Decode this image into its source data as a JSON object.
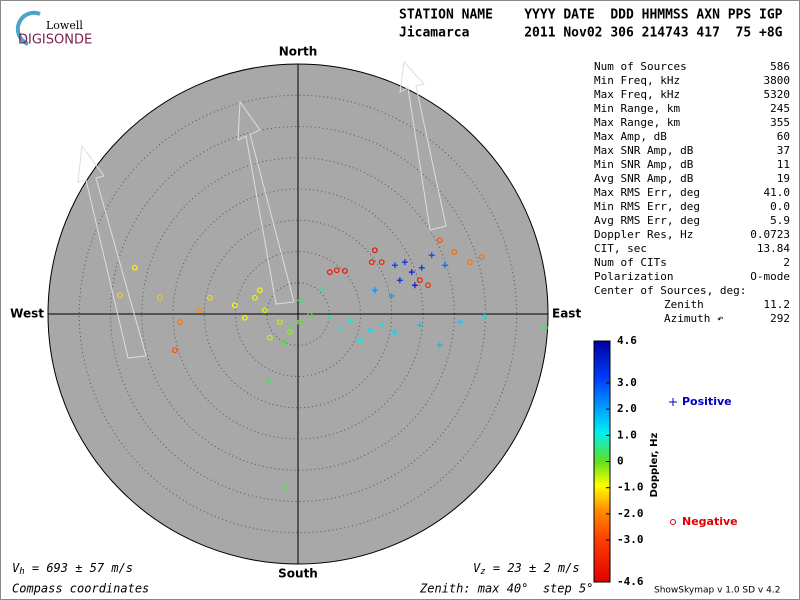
{
  "chart_data": {
    "type": "skymap",
    "logo": {
      "line1": "Lowell",
      "line2": "DIGISONDE"
    },
    "header": {
      "line1": "STATION NAME    YYYY DATE  DDD HHMMSS AXN PPS IGP",
      "line2": "Jicamarca       2011 Nov02 306 214743 417  75 +8G"
    },
    "directions": {
      "north": "North",
      "south": "South",
      "east": "East",
      "west": "West"
    },
    "zenith_max": 40,
    "zenith_step": 5,
    "stats": [
      [
        "Num of Sources",
        586
      ],
      [
        "Min Freq, kHz",
        3800
      ],
      [
        "Max Freq, kHz",
        5320
      ],
      [
        "Min Range, km",
        245
      ],
      [
        "Max Range, km",
        355
      ],
      [
        "Max Amp, dB",
        60
      ],
      [
        "Max SNR Amp, dB",
        37
      ],
      [
        "Min SNR Amp, dB",
        11
      ],
      [
        "Avg SNR Amp, dB",
        19
      ],
      [
        "Max RMS Err, deg",
        "41.0"
      ],
      [
        "Min RMS Err, deg",
        "0.0"
      ],
      [
        "Avg RMS Err, deg",
        5.9
      ],
      [
        "Doppler Res, Hz",
        0.0723
      ],
      [
        "CIT, sec",
        13.84
      ],
      [
        "Num of CITs",
        2
      ],
      [
        "Polarization",
        "O-mode"
      ]
    ],
    "center_label": "Center of Sources, deg:",
    "center": [
      [
        "Zenith",
        11.2
      ],
      [
        "Azimuth ↶",
        292
      ]
    ],
    "colorbar": {
      "label": "Doppler, Hz",
      "lim": [
        -4.6,
        4.6
      ],
      "ticks": [
        4.6,
        {
          "value": 3,
          "label": "3.0"
        },
        {
          "value": 2,
          "label": "2.0"
        },
        {
          "value": 1,
          "label": "1.0"
        },
        0,
        {
          "value": -1,
          "label": "-1.0"
        },
        {
          "value": -2,
          "label": "-2.0"
        },
        {
          "value": -3,
          "label": "-3.0"
        },
        -4.6
      ]
    },
    "legend": {
      "positive": "Positive",
      "negative": "Negative"
    },
    "points": {
      "negative": [
        [
          5.1,
          6.7,
          -4.2
        ],
        [
          6.2,
          7.0,
          -4.0
        ],
        [
          7.5,
          6.9,
          -4.1
        ],
        [
          12.3,
          10.2,
          -4.3
        ],
        [
          11.8,
          8.3,
          -4.0
        ],
        [
          13.4,
          8.3,
          -3.8
        ],
        [
          19.5,
          5.4,
          -3.9
        ],
        [
          20.8,
          4.6,
          -3.6
        ],
        [
          22.7,
          11.8,
          -2.7
        ],
        [
          25.0,
          9.9,
          -2.4
        ],
        [
          27.5,
          8.3,
          -2.2
        ],
        [
          29.4,
          9.1,
          -2.3
        ],
        [
          -28.5,
          3.0,
          -1.3
        ],
        [
          -26.1,
          7.4,
          -1.0
        ],
        [
          -22.1,
          2.6,
          -1.4
        ],
        [
          -18.9,
          -1.3,
          -2.2
        ],
        [
          -19.7,
          -5.8,
          -2.8
        ],
        [
          -14.1,
          2.6,
          -1.2
        ],
        [
          -10.1,
          1.4,
          -0.9
        ],
        [
          -6.9,
          2.6,
          -0.8
        ],
        [
          -5.3,
          0.6,
          -0.7
        ],
        [
          -8.5,
          -0.6,
          -1.0
        ],
        [
          -2.9,
          -1.3,
          -0.5
        ],
        [
          -1.3,
          -2.9,
          -0.3
        ],
        [
          -4.5,
          -3.8,
          -0.6
        ],
        [
          0.3,
          -1.3,
          0.0
        ],
        [
          1.9,
          -0.2,
          0.1
        ],
        [
          -15.7,
          0.6,
          -1.9
        ],
        [
          -6.1,
          3.8,
          -0.9
        ],
        [
          39.5,
          -2.2,
          0.4
        ]
      ],
      "positive": [
        [
          15.5,
          7.8,
          3.2
        ],
        [
          17.1,
          8.3,
          3.5
        ],
        [
          18.2,
          6.7,
          3.8
        ],
        [
          19.8,
          7.4,
          3.4
        ],
        [
          21.4,
          9.4,
          3.0
        ],
        [
          16.3,
          5.4,
          3.6
        ],
        [
          18.7,
          4.6,
          4.0
        ],
        [
          23.5,
          7.8,
          2.6
        ],
        [
          12.3,
          3.8,
          2.2
        ],
        [
          15.0,
          2.9,
          2.0
        ],
        [
          8.3,
          -1.0,
          1.0
        ],
        [
          11.5,
          -2.6,
          1.3
        ],
        [
          13.4,
          -1.8,
          1.2
        ],
        [
          15.5,
          -2.9,
          1.4
        ],
        [
          19.5,
          -1.8,
          1.6
        ],
        [
          22.7,
          -5.0,
          1.7
        ],
        [
          25.9,
          -1.3,
          1.5
        ],
        [
          29.9,
          -0.3,
          1.2
        ],
        [
          0.3,
          2.2,
          0.4
        ],
        [
          -1.3,
          -1.9,
          0.3
        ],
        [
          -2.1,
          -4.5,
          0.2
        ],
        [
          -4.8,
          -10.6,
          0.3
        ],
        [
          -2.1,
          -27.7,
          0.2
        ],
        [
          5.1,
          -0.6,
          0.8
        ],
        [
          6.7,
          -2.2,
          0.9
        ],
        [
          3.8,
          3.8,
          0.6
        ],
        [
          9.9,
          -4.2,
          1.1
        ]
      ]
    },
    "vh": {
      "symbol": "V",
      "sub": "h",
      "text": " = 693 ± 57 m/s"
    },
    "vz": {
      "symbol": "V",
      "sub": "z",
      "text": " = 23 ± 2 m/s"
    },
    "footer_left": "Compass coordinates",
    "footer_mid": "Zenith: max 40°  step 5°",
    "footer_right": "ShowSkymap v 1.0  SD v 4.2"
  }
}
